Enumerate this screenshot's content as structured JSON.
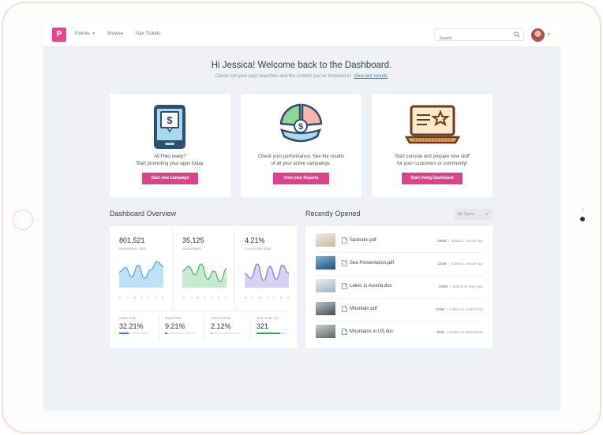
{
  "header": {
    "logo_text": "P",
    "nav": [
      {
        "label": "Events",
        "has_dropdown": true
      },
      {
        "label": "Browse",
        "has_dropdown": false
      },
      {
        "label": "Your Tickets",
        "has_dropdown": false
      }
    ],
    "search_placeholder": "Search"
  },
  "welcome": {
    "title": "Hi Jessica! Welcome back to the Dashboard.",
    "subtitle": "Check out your past searches and the content you've browsed in.",
    "link": "View last results"
  },
  "cards": [
    {
      "line1": "All Files ready?",
      "line2": "Start promoting your apps today.",
      "button": "Start new Campaign",
      "icon": "mobile-dollar-icon"
    },
    {
      "line1": "Check your performance. See the results",
      "line2": "of all your active campaings.",
      "button": "View your Reports",
      "icon": "pie-chart-dollar-icon"
    },
    {
      "line1": "Start console and prepare new stuff",
      "line2": "for your customers or community!",
      "button": "Start Using Dashboard",
      "icon": "laptop-star-icon"
    }
  ],
  "overview": {
    "title": "Dashboard Overview",
    "days": [
      "M",
      "T",
      "W",
      "T",
      "F",
      "S",
      "S"
    ],
    "stats": [
      {
        "value": "801,521",
        "label": "Newsletters Sent",
        "color": "#4aa8e0",
        "fill": "#bfe2f7",
        "curve": [
          0.55,
          0.35,
          0.75,
          0.25,
          0.8,
          0.45,
          0.1,
          0.3
        ]
      },
      {
        "value": "35,125",
        "label": "Subscribers",
        "color": "#46b96a",
        "fill": "#c6ebcf",
        "curve": [
          0.5,
          0.3,
          0.65,
          0.2,
          0.85,
          0.5,
          0.95,
          0.4
        ]
      },
      {
        "value": "4.21%",
        "label": "Conversion Rate",
        "color": "#8c7fd6",
        "fill": "#d9d3f3",
        "curve": [
          0.6,
          0.8,
          0.2,
          0.9,
          0.3,
          0.85,
          0.25,
          0.6
        ]
      }
    ],
    "minis": [
      {
        "label": "Open Rate",
        "value": "32.21%",
        "progress": 0.32,
        "color": "#2e7fd6"
      },
      {
        "label": "Read Rate",
        "value": "9.21%",
        "progress": 0.09,
        "color": "#2e7fd6"
      },
      {
        "label": "Attachments",
        "value": "2.12%",
        "progress": 0.02,
        "color": "#2e7fd6"
      },
      {
        "label": "New Subs (w)",
        "value": "321",
        "progress": 0.8,
        "color": "#2fa84f"
      }
    ]
  },
  "recent": {
    "title": "Recently Opened",
    "filter": "All Types",
    "files": [
      {
        "name": "Santorini.pdf",
        "size": "29MB",
        "edited": "Edited 1 minute ago",
        "type": "pdf",
        "thumb": [
          "#c9b8a0",
          "#f1ece4"
        ]
      },
      {
        "name": "Sea Presentation.pdf",
        "size": "12MB",
        "edited": "Edited 1 minute ago",
        "type": "pdf",
        "thumb": [
          "#1f4f78",
          "#7fb3d6"
        ]
      },
      {
        "name": "Lakes in Austria.doc",
        "size": "18MB",
        "edited": "Edited 20 days ago",
        "type": "doc",
        "thumb": [
          "#9fb4c6",
          "#e7eef4"
        ]
      },
      {
        "name": "Mountain.pdf",
        "size": "54MB",
        "edited": "Edited on 11/02/2015",
        "type": "pdf",
        "thumb": [
          "#3f4a52",
          "#b9c4cb"
        ]
      },
      {
        "name": "Mountains in US.doc",
        "size": "8MB",
        "edited": "Edited on 09/01/2016",
        "type": "doc",
        "thumb": [
          "#5d6a60",
          "#c7cfc9"
        ]
      }
    ]
  }
}
